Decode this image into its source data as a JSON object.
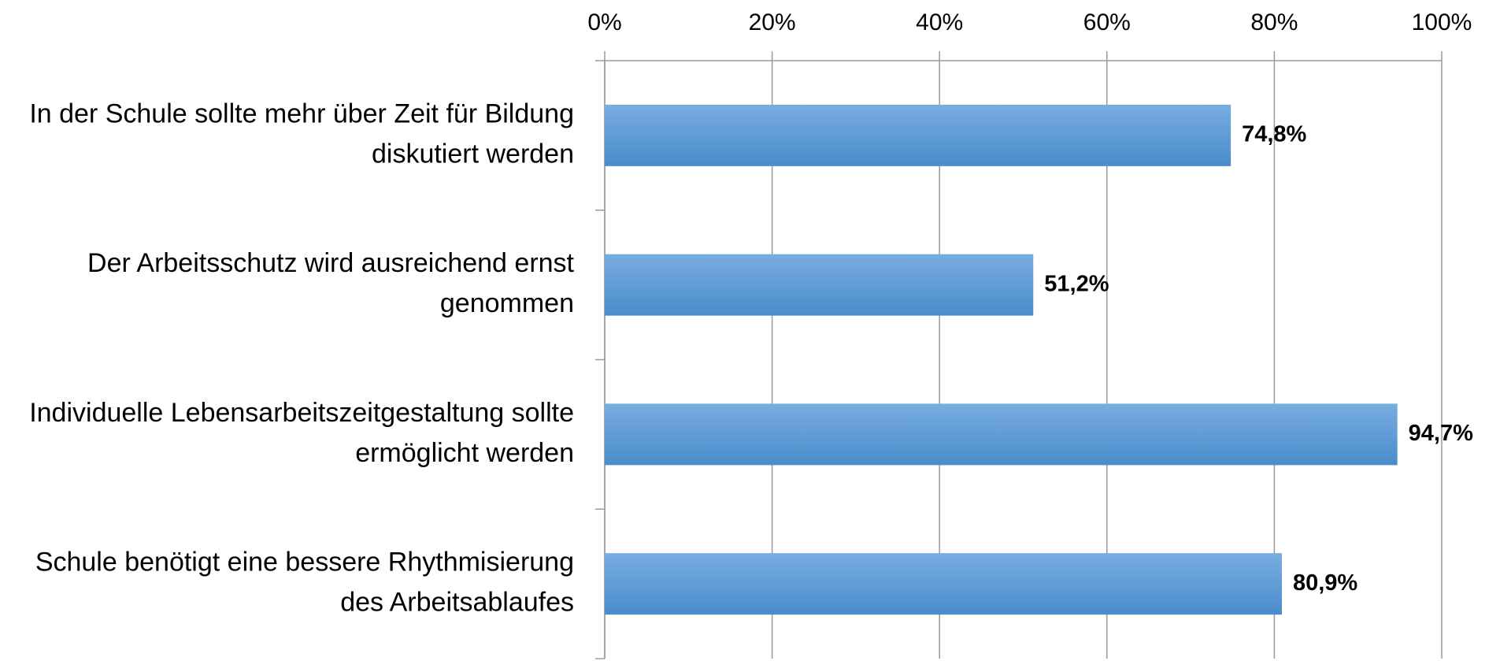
{
  "chart_data": {
    "type": "bar",
    "orientation": "horizontal",
    "categories": [
      "In der Schule sollte mehr über Zeit für Bildung diskutiert werden",
      "Der Arbeitsschutz wird ausreichend ernst genommen",
      "Individuelle Lebensarbeitszeitgestaltung sollte ermöglicht werden",
      "Schule benötigt eine bessere Rhythmisierung des Arbeitsablaufes"
    ],
    "values": [
      74.8,
      51.2,
      94.7,
      80.9
    ],
    "value_labels": [
      "74,8%",
      "51,2%",
      "94,7%",
      "80,9%"
    ],
    "color": "#4a8ccc",
    "xlim": [
      0,
      100
    ],
    "xticks": [
      {
        "value": 0,
        "label": "0%"
      },
      {
        "value": 20,
        "label": "20%"
      },
      {
        "value": 40,
        "label": "40%"
      },
      {
        "value": 60,
        "label": "60%"
      },
      {
        "value": 80,
        "label": "80%"
      },
      {
        "value": 100,
        "label": "100%"
      }
    ],
    "grid": true
  }
}
